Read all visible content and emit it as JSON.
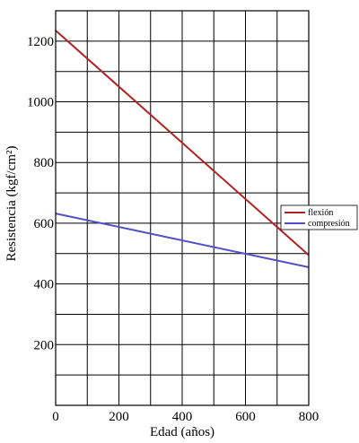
{
  "chart_data": {
    "type": "line",
    "title": "",
    "xlabel": "Edad (años)",
    "ylabel": "Resistencia (kgf/cm²)",
    "xlim": [
      0,
      800
    ],
    "ylim": [
      0,
      1300
    ],
    "x_ticks": [
      0,
      200,
      400,
      600,
      800
    ],
    "y_ticks": [
      200,
      400,
      600,
      800,
      1000,
      1200
    ],
    "x_grid_step": 100,
    "y_grid_step": 100,
    "grid": true,
    "legend_position": "right",
    "series": [
      {
        "name": "flexión",
        "color": "#b22222",
        "x": [
          0,
          800
        ],
        "y": [
          1235,
          495
        ]
      },
      {
        "name": "compresión",
        "color": "#5050c8",
        "x": [
          0,
          800
        ],
        "y": [
          632,
          455
        ]
      }
    ]
  }
}
